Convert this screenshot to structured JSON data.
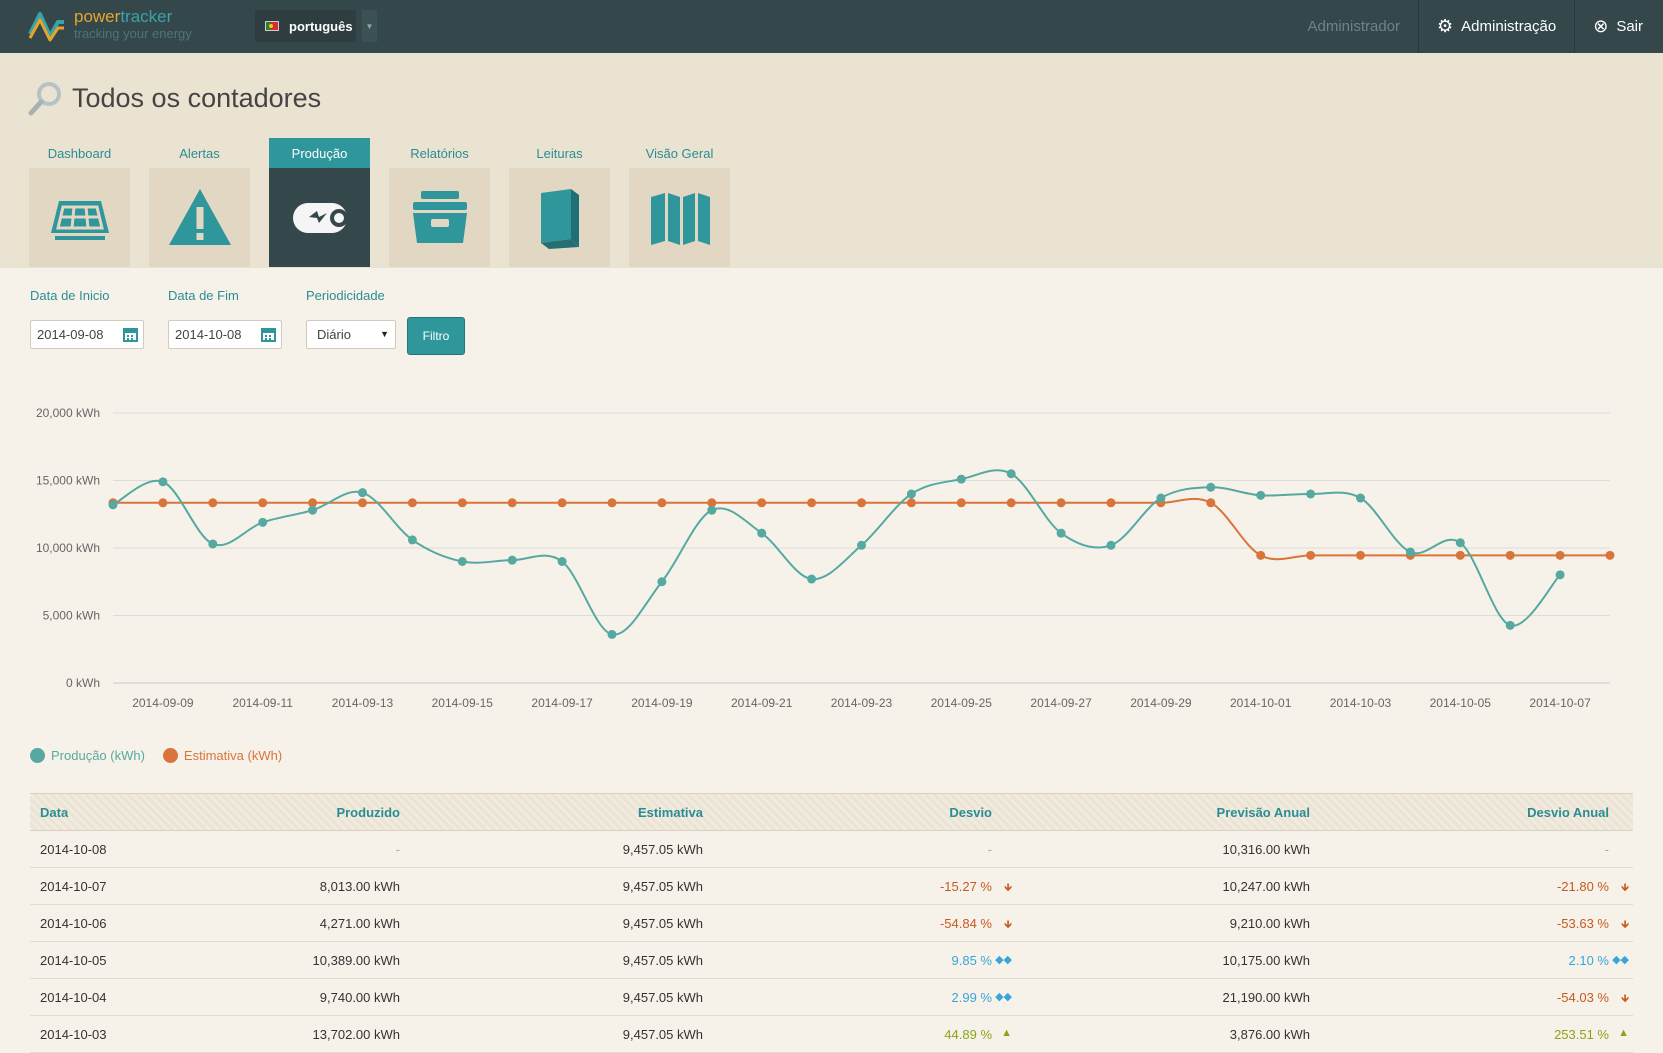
{
  "app": {
    "logo_power": "power",
    "logo_tracker": "tracker",
    "logo_tagline": "tracking your energy",
    "language": "português",
    "user_label": "Administrador",
    "admin_link": "Administração",
    "logout_link": "Sair"
  },
  "page": {
    "title": "Todos os contadores"
  },
  "tabs": [
    {
      "label": "Dashboard",
      "icon": "solar-panel-icon"
    },
    {
      "label": "Alertas",
      "icon": "warning-icon"
    },
    {
      "label": "Produção",
      "icon": "battery-icon",
      "active": true
    },
    {
      "label": "Relatórios",
      "icon": "archive-box-icon"
    },
    {
      "label": "Leituras",
      "icon": "book-icon"
    },
    {
      "label": "Visão Geral",
      "icon": "map-icon"
    }
  ],
  "filters": {
    "start_label": "Data de Inicio",
    "start_value": "2014-09-08",
    "end_label": "Data de Fim",
    "end_value": "2014-10-08",
    "period_label": "Periodicidade",
    "period_value": "Diário",
    "filter_button": "Filtro"
  },
  "colors": {
    "production": "#55a9a0",
    "estimate": "#d9743a",
    "accent": "#2f969c",
    "header": "#34474b"
  },
  "chart_data": {
    "type": "line",
    "y_tick_labels": [
      "0 kWh",
      "5,000 kWh",
      "10,000 kWh",
      "15,000 kWh",
      "20,000 kWh"
    ],
    "ylim": [
      0,
      20000
    ],
    "grid": true,
    "x_dates": [
      "2014-09-08",
      "2014-09-09",
      "2014-09-10",
      "2014-09-11",
      "2014-09-12",
      "2014-09-13",
      "2014-09-14",
      "2014-09-15",
      "2014-09-16",
      "2014-09-17",
      "2014-09-18",
      "2014-09-19",
      "2014-09-20",
      "2014-09-21",
      "2014-09-22",
      "2014-09-23",
      "2014-09-24",
      "2014-09-25",
      "2014-09-26",
      "2014-09-27",
      "2014-09-28",
      "2014-09-29",
      "2014-09-30",
      "2014-10-01",
      "2014-10-02",
      "2014-10-03",
      "2014-10-04",
      "2014-10-05",
      "2014-10-06",
      "2014-10-07",
      "2014-10-08"
    ],
    "x_tick_labels": [
      "2014-09-09",
      "2014-09-11",
      "2014-09-13",
      "2014-09-15",
      "2014-09-17",
      "2014-09-19",
      "2014-09-21",
      "2014-09-23",
      "2014-09-25",
      "2014-09-27",
      "2014-09-29",
      "2014-10-01",
      "2014-10-03",
      "2014-10-05",
      "2014-10-07"
    ],
    "series": [
      {
        "name": "Produção (kWh)",
        "values": [
          13200,
          14900,
          10300,
          11900,
          12800,
          14100,
          10600,
          9000,
          9100,
          9000,
          3600,
          7500,
          12800,
          11100,
          7700,
          10200,
          14000,
          15100,
          15500,
          11100,
          10200,
          13700,
          14500,
          13900,
          14000,
          13700,
          9700,
          10389,
          4271,
          8013,
          null
        ]
      },
      {
        "name": "Estimativa (kWh)",
        "values": [
          13350,
          13350,
          13350,
          13350,
          13350,
          13350,
          13350,
          13350,
          13350,
          13350,
          13350,
          13350,
          13350,
          13350,
          13350,
          13350,
          13350,
          13350,
          13350,
          13350,
          13350,
          13350,
          13350,
          9457.05,
          9457.05,
          9457.05,
          9457.05,
          9457.05,
          9457.05,
          9457.05,
          9457.05
        ]
      }
    ]
  },
  "table": {
    "headers": [
      "Data",
      "Produzido",
      "Estimativa",
      "Desvio",
      "Previsão Anual",
      "Desvio Anual"
    ],
    "rows": [
      {
        "date": "2014-10-08",
        "produced": "-",
        "estimate": "9,457.05 kWh",
        "dev": "-",
        "dev_kind": "dash",
        "forecast": "10,316.00 kWh",
        "adev": "-",
        "adev_kind": "dash"
      },
      {
        "date": "2014-10-07",
        "produced": "8,013.00 kWh",
        "estimate": "9,457.05 kWh",
        "dev": "-15.27 %",
        "dev_kind": "neg",
        "forecast": "10,247.00 kWh",
        "adev": "-21.80 %",
        "adev_kind": "neg"
      },
      {
        "date": "2014-10-06",
        "produced": "4,271.00 kWh",
        "estimate": "9,457.05 kWh",
        "dev": "-54.84 %",
        "dev_kind": "neg",
        "forecast": "9,210.00 kWh",
        "adev": "-53.63 %",
        "adev_kind": "neg"
      },
      {
        "date": "2014-10-05",
        "produced": "10,389.00 kWh",
        "estimate": "9,457.05 kWh",
        "dev": "9.85 %",
        "dev_kind": "neu",
        "forecast": "10,175.00 kWh",
        "adev": "2.10 %",
        "adev_kind": "neu"
      },
      {
        "date": "2014-10-04",
        "produced": "9,740.00 kWh",
        "estimate": "9,457.05 kWh",
        "dev": "2.99 %",
        "dev_kind": "neu",
        "forecast": "21,190.00 kWh",
        "adev": "-54.03 %",
        "adev_kind": "neg"
      },
      {
        "date": "2014-10-03",
        "produced": "13,702.00 kWh",
        "estimate": "9,457.05 kWh",
        "dev": "44.89 %",
        "dev_kind": "pos",
        "forecast": "3,876.00 kWh",
        "adev": "253.51 %",
        "adev_kind": "pos"
      }
    ]
  }
}
